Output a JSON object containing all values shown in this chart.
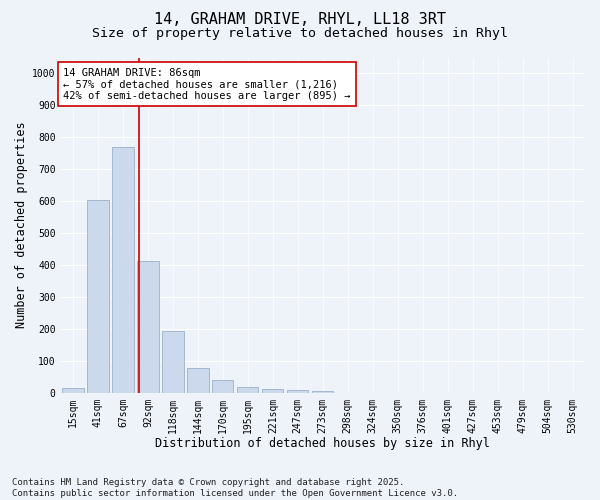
{
  "title_line1": "14, GRAHAM DRIVE, RHYL, LL18 3RT",
  "title_line2": "Size of property relative to detached houses in Rhyl",
  "xlabel": "Distribution of detached houses by size in Rhyl",
  "ylabel": "Number of detached properties",
  "categories": [
    "15sqm",
    "41sqm",
    "67sqm",
    "92sqm",
    "118sqm",
    "144sqm",
    "170sqm",
    "195sqm",
    "221sqm",
    "247sqm",
    "273sqm",
    "298sqm",
    "324sqm",
    "350sqm",
    "376sqm",
    "401sqm",
    "427sqm",
    "453sqm",
    "479sqm",
    "504sqm",
    "530sqm"
  ],
  "values": [
    15,
    605,
    770,
    413,
    193,
    78,
    40,
    18,
    13,
    7,
    5,
    0,
    0,
    0,
    0,
    0,
    0,
    0,
    0,
    0,
    0
  ],
  "bar_color": "#ccd9ec",
  "bar_edgecolor": "#9ab0cc",
  "vline_position": 2.65,
  "vline_color": "#cc0000",
  "annotation_text": "14 GRAHAM DRIVE: 86sqm\n← 57% of detached houses are smaller (1,216)\n42% of semi-detached houses are larger (895) →",
  "annotation_box_edgecolor": "#cc0000",
  "annotation_box_facecolor": "#ffffff",
  "ylim": [
    0,
    1050
  ],
  "yticks": [
    0,
    100,
    200,
    300,
    400,
    500,
    600,
    700,
    800,
    900,
    1000
  ],
  "background_color": "#eef2f9",
  "grid_color": "#ffffff",
  "footer_text": "Contains HM Land Registry data © Crown copyright and database right 2025.\nContains public sector information licensed under the Open Government Licence v3.0.",
  "title_fontsize": 11,
  "subtitle_fontsize": 9.5,
  "axis_label_fontsize": 8.5,
  "tick_fontsize": 7,
  "annotation_fontsize": 7.5,
  "footer_fontsize": 6.5
}
